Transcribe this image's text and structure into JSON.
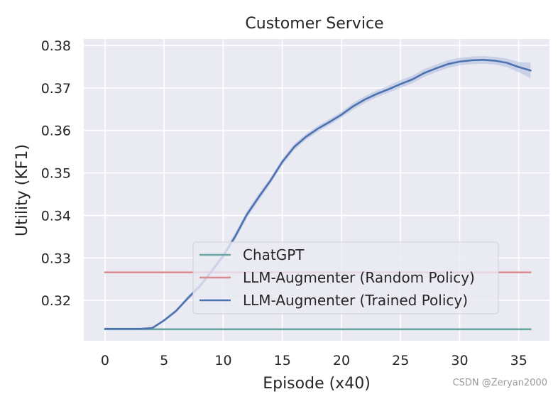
{
  "chart_data": {
    "type": "line",
    "title": "Customer Service",
    "xlabel": "Episode (x40)",
    "ylabel": "Utility (KF1)",
    "xlim": [
      -1.8,
      37.6
    ],
    "ylim": [
      0.3105,
      0.3815
    ],
    "xticks": [
      0,
      5,
      10,
      15,
      20,
      25,
      30,
      35
    ],
    "yticks": [
      0.32,
      0.33,
      0.34,
      0.35,
      0.36,
      0.37,
      0.38
    ],
    "ytick_labels": [
      "0.32",
      "0.33",
      "0.34",
      "0.35",
      "0.36",
      "0.37",
      "0.38"
    ],
    "grid": true,
    "legend_position": "lower-right",
    "series": [
      {
        "name": "ChatGPT",
        "color": "#6aa7a4",
        "x": [
          0,
          36
        ],
        "y": [
          0.3132,
          0.3132
        ]
      },
      {
        "name": "LLM-Augmenter (Random Policy)",
        "color": "#d98a8f",
        "x": [
          0,
          36
        ],
        "y": [
          0.3266,
          0.3266
        ]
      },
      {
        "name": "LLM-Augmenter (Trained Policy)",
        "color": "#4c72b0",
        "band_color": "#a7b7db",
        "x": [
          0,
          1,
          2,
          3,
          4,
          5,
          6,
          7,
          8,
          9,
          10,
          11,
          12,
          13,
          14,
          15,
          16,
          17,
          18,
          19,
          20,
          21,
          22,
          23,
          24,
          25,
          26,
          27,
          28,
          29,
          30,
          31,
          32,
          33,
          34,
          35,
          36
        ],
        "y": [
          0.3133,
          0.3133,
          0.3133,
          0.3133,
          0.3135,
          0.3153,
          0.3175,
          0.3205,
          0.3233,
          0.3268,
          0.3305,
          0.335,
          0.3402,
          0.3443,
          0.3482,
          0.3526,
          0.3561,
          0.3585,
          0.3604,
          0.362,
          0.3637,
          0.3657,
          0.3673,
          0.3686,
          0.3697,
          0.3709,
          0.372,
          0.3735,
          0.3746,
          0.3756,
          0.3762,
          0.3765,
          0.3766,
          0.3764,
          0.3759,
          0.3749,
          0.3741
        ],
        "y_low": [
          0.313,
          0.313,
          0.313,
          0.313,
          0.3132,
          0.315,
          0.3171,
          0.32,
          0.3227,
          0.3261,
          0.3297,
          0.3342,
          0.3394,
          0.3435,
          0.3475,
          0.3519,
          0.3554,
          0.3578,
          0.3597,
          0.3613,
          0.363,
          0.3649,
          0.3665,
          0.3678,
          0.3689,
          0.37,
          0.3711,
          0.3726,
          0.3737,
          0.3747,
          0.3753,
          0.3756,
          0.3757,
          0.3755,
          0.3749,
          0.3737,
          0.3723
        ],
        "y_high": [
          0.3136,
          0.3136,
          0.3136,
          0.3136,
          0.3138,
          0.3156,
          0.3179,
          0.321,
          0.3239,
          0.3275,
          0.3313,
          0.3358,
          0.341,
          0.3451,
          0.3489,
          0.3533,
          0.3568,
          0.3592,
          0.3611,
          0.3627,
          0.3644,
          0.3665,
          0.3681,
          0.3694,
          0.3705,
          0.3718,
          0.3729,
          0.3744,
          0.3755,
          0.3765,
          0.3771,
          0.3774,
          0.3775,
          0.3773,
          0.3769,
          0.3761,
          0.3759
        ]
      }
    ]
  },
  "watermark": "CSDN @Zeryan2000"
}
